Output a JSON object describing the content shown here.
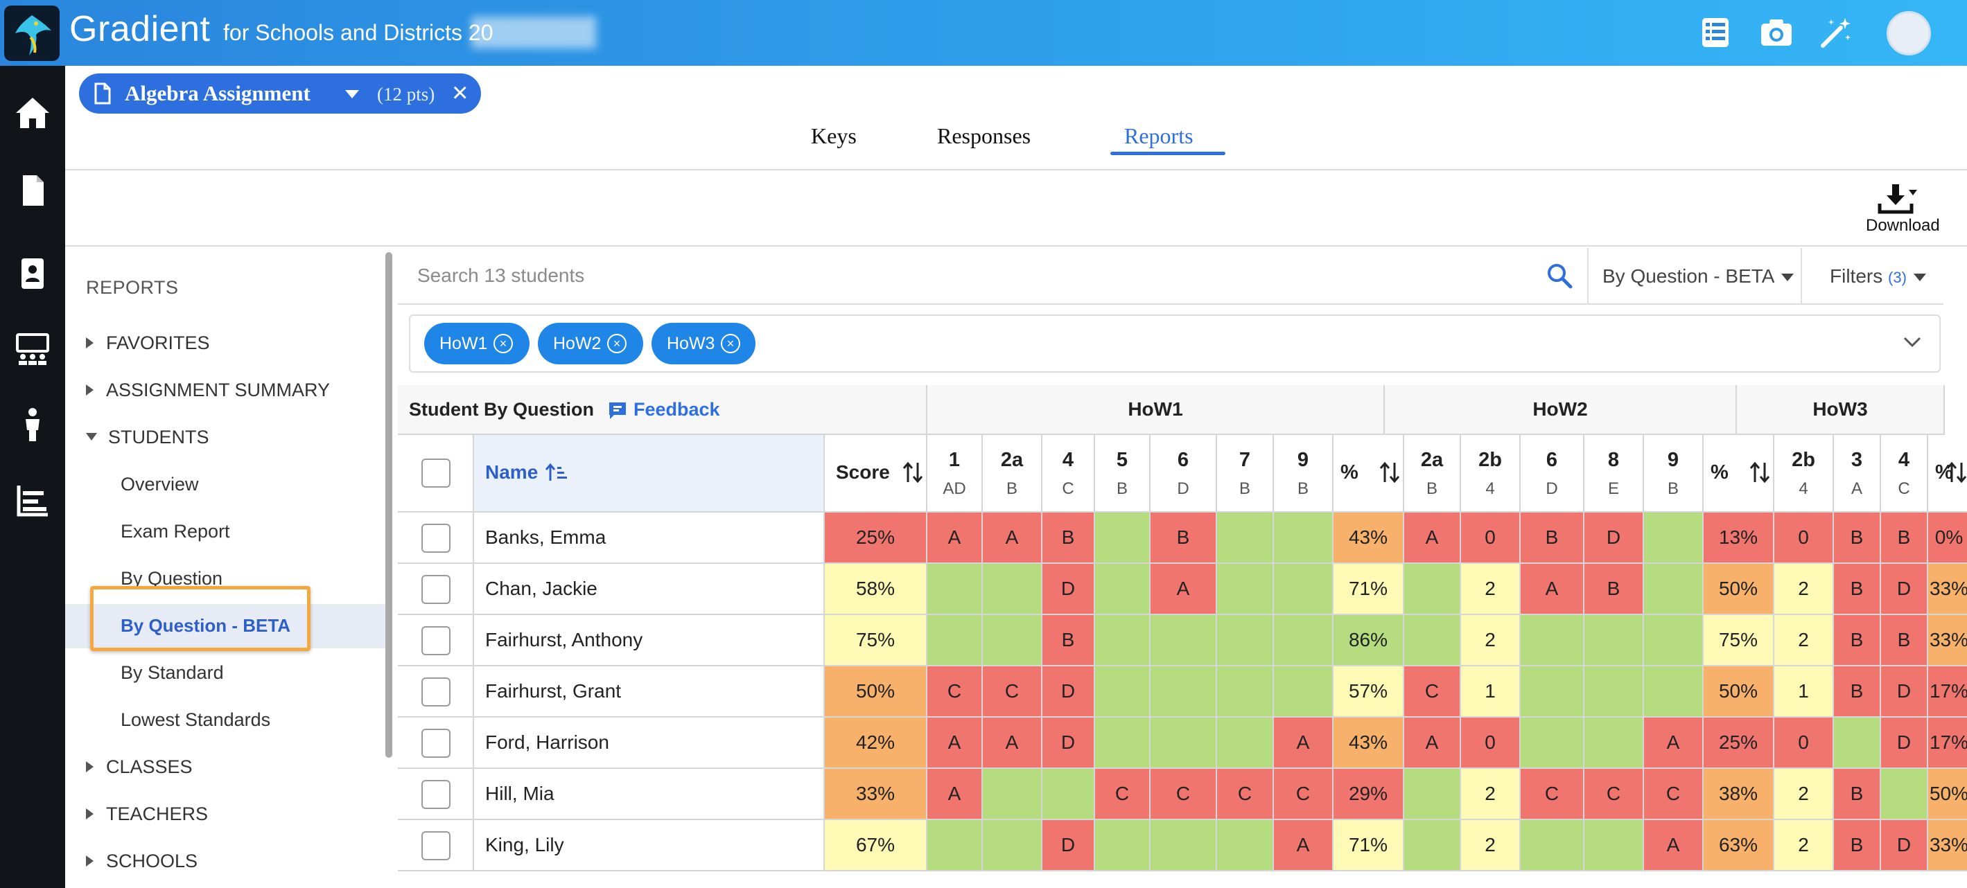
{
  "app": {
    "name": "Gradient",
    "subtitle": "for Schools and Districts 20",
    "colors": {
      "topbar": "#2a86dd",
      "rail": "#111418",
      "accent": "#2e6fe0",
      "pill": "#1f86e8",
      "highlight": "#f3a93f"
    }
  },
  "top_icons": [
    "spreadsheet-icon",
    "camera-icon",
    "magic-wand-icon",
    "avatar"
  ],
  "rail_icons": [
    "home-icon",
    "document-icon",
    "student-id-icon",
    "classroom-icon",
    "person-icon",
    "chart-icon"
  ],
  "assignment": {
    "title": "Algebra Assignment",
    "points": "(12 pts)"
  },
  "tabs": [
    {
      "label": "Keys",
      "active": false
    },
    {
      "label": "Responses",
      "active": false
    },
    {
      "label": "Reports",
      "active": true
    }
  ],
  "download_label": "Download",
  "reports_menu": {
    "heading": "REPORTS",
    "items": [
      {
        "label": "FAVORITES",
        "type": "collapsed"
      },
      {
        "label": "ASSIGNMENT SUMMARY",
        "type": "collapsed"
      },
      {
        "label": "STUDENTS",
        "type": "expanded"
      },
      {
        "label": "Overview",
        "type": "child"
      },
      {
        "label": "Exam Report",
        "type": "child"
      },
      {
        "label": "By Question",
        "type": "child"
      },
      {
        "label": "By Question - BETA",
        "type": "child-selected"
      },
      {
        "label": "By Standard",
        "type": "child"
      },
      {
        "label": "Lowest Standards",
        "type": "child"
      },
      {
        "label": "CLASSES",
        "type": "collapsed"
      },
      {
        "label": "TEACHERS",
        "type": "collapsed"
      },
      {
        "label": "SCHOOLS",
        "type": "collapsed"
      }
    ]
  },
  "toolbar": {
    "search_placeholder": "Search 13 students",
    "view_label": "By Question - BETA",
    "filters_label": "Filters",
    "filters_count": "(3)"
  },
  "filter_pills": [
    "HoW1",
    "HoW2",
    "HoW3"
  ],
  "table": {
    "title": "Student By Question",
    "feedback_label": "Feedback",
    "name_header": "Name",
    "score_header": "Score",
    "groups": [
      {
        "name": "HoW1",
        "questions": [
          {
            "q": "1",
            "k": "AD"
          },
          {
            "q": "2a",
            "k": "B"
          },
          {
            "q": "4",
            "k": "C"
          },
          {
            "q": "5",
            "k": "B"
          },
          {
            "q": "6",
            "k": "D"
          },
          {
            "q": "7",
            "k": "B"
          },
          {
            "q": "9",
            "k": "B"
          },
          {
            "q": "%",
            "k": ""
          }
        ]
      },
      {
        "name": "HoW2",
        "questions": [
          {
            "q": "2a",
            "k": "B"
          },
          {
            "q": "2b",
            "k": "4"
          },
          {
            "q": "6",
            "k": "D"
          },
          {
            "q": "8",
            "k": "E"
          },
          {
            "q": "9",
            "k": "B"
          },
          {
            "q": "%",
            "k": ""
          }
        ]
      },
      {
        "name": "HoW3",
        "questions": [
          {
            "q": "2b",
            "k": "4"
          },
          {
            "q": "3",
            "k": "A"
          },
          {
            "q": "4",
            "k": "C"
          },
          {
            "q": "%",
            "k": ""
          }
        ]
      }
    ],
    "rows": [
      {
        "name": "Banks, Emma",
        "score": "25%",
        "cells": [
          [
            "A",
            "r"
          ],
          [
            "A",
            "r"
          ],
          [
            "B",
            "r"
          ],
          [
            "",
            "g"
          ],
          [
            "B",
            "r"
          ],
          [
            "",
            "g"
          ],
          [
            "",
            "g"
          ],
          [
            "43%",
            "o"
          ],
          [
            "A",
            "r"
          ],
          [
            "0",
            "r"
          ],
          [
            "B",
            "r"
          ],
          [
            "D",
            "r"
          ],
          [
            "",
            "g"
          ],
          [
            "13%",
            "r"
          ],
          [
            "0",
            "r"
          ],
          [
            "B",
            "r"
          ],
          [
            "B",
            "r"
          ],
          [
            "0%",
            "r"
          ]
        ]
      },
      {
        "name": "Chan, Jackie",
        "score": "58%",
        "cells": [
          [
            "",
            "g"
          ],
          [
            "",
            "g"
          ],
          [
            "D",
            "r"
          ],
          [
            "",
            "g"
          ],
          [
            "A",
            "r"
          ],
          [
            "",
            "g"
          ],
          [
            "",
            "g"
          ],
          [
            "71%",
            "y"
          ],
          [
            "",
            "g"
          ],
          [
            "2",
            "y"
          ],
          [
            "A",
            "r"
          ],
          [
            "B",
            "r"
          ],
          [
            "",
            "g"
          ],
          [
            "50%",
            "o"
          ],
          [
            "2",
            "y"
          ],
          [
            "B",
            "r"
          ],
          [
            "D",
            "r"
          ],
          [
            "33%",
            "o"
          ]
        ]
      },
      {
        "name": "Fairhurst, Anthony",
        "score": "75%",
        "cells": [
          [
            "",
            "g"
          ],
          [
            "",
            "g"
          ],
          [
            "B",
            "r"
          ],
          [
            "",
            "g"
          ],
          [
            "",
            "g"
          ],
          [
            "",
            "g"
          ],
          [
            "",
            "g"
          ],
          [
            "86%",
            "g"
          ],
          [
            "",
            "g"
          ],
          [
            "2",
            "y"
          ],
          [
            "",
            "g"
          ],
          [
            "",
            "g"
          ],
          [
            "",
            "g"
          ],
          [
            "75%",
            "y"
          ],
          [
            "2",
            "y"
          ],
          [
            "B",
            "r"
          ],
          [
            "B",
            "r"
          ],
          [
            "33%",
            "o"
          ]
        ]
      },
      {
        "name": "Fairhurst, Grant",
        "score": "50%",
        "cells": [
          [
            "C",
            "r"
          ],
          [
            "C",
            "r"
          ],
          [
            "D",
            "r"
          ],
          [
            "",
            "g"
          ],
          [
            "",
            "g"
          ],
          [
            "",
            "g"
          ],
          [
            "",
            "g"
          ],
          [
            "57%",
            "y"
          ],
          [
            "C",
            "r"
          ],
          [
            "1",
            "y"
          ],
          [
            "",
            "g"
          ],
          [
            "",
            "g"
          ],
          [
            "",
            "g"
          ],
          [
            "50%",
            "o"
          ],
          [
            "1",
            "y"
          ],
          [
            "B",
            "r"
          ],
          [
            "D",
            "r"
          ],
          [
            "17%",
            "r"
          ]
        ]
      },
      {
        "name": "Ford, Harrison",
        "score": "42%",
        "cells": [
          [
            "A",
            "r"
          ],
          [
            "A",
            "r"
          ],
          [
            "D",
            "r"
          ],
          [
            "",
            "g"
          ],
          [
            "",
            "g"
          ],
          [
            "",
            "g"
          ],
          [
            "A",
            "r"
          ],
          [
            "43%",
            "o"
          ],
          [
            "A",
            "r"
          ],
          [
            "0",
            "r"
          ],
          [
            "",
            "g"
          ],
          [
            "",
            "g"
          ],
          [
            "A",
            "r"
          ],
          [
            "25%",
            "r"
          ],
          [
            "0",
            "r"
          ],
          [
            "",
            "g"
          ],
          [
            "D",
            "r"
          ],
          [
            "17%",
            "r"
          ]
        ]
      },
      {
        "name": "Hill, Mia",
        "score": "33%",
        "cells": [
          [
            "A",
            "r"
          ],
          [
            "",
            "g"
          ],
          [
            "",
            "g"
          ],
          [
            "C",
            "r"
          ],
          [
            "C",
            "r"
          ],
          [
            "C",
            "r"
          ],
          [
            "C",
            "r"
          ],
          [
            "29%",
            "r"
          ],
          [
            "",
            "g"
          ],
          [
            "2",
            "y"
          ],
          [
            "C",
            "r"
          ],
          [
            "C",
            "r"
          ],
          [
            "C",
            "r"
          ],
          [
            "38%",
            "o"
          ],
          [
            "2",
            "y"
          ],
          [
            "B",
            "r"
          ],
          [
            "",
            "g"
          ],
          [
            "50%",
            "o"
          ]
        ]
      },
      {
        "name": "King, Lily",
        "score": "67%",
        "cells": [
          [
            "",
            "g"
          ],
          [
            "",
            "g"
          ],
          [
            "D",
            "r"
          ],
          [
            "",
            "g"
          ],
          [
            "",
            "g"
          ],
          [
            "",
            "g"
          ],
          [
            "A",
            "r"
          ],
          [
            "71%",
            "y"
          ],
          [
            "",
            "g"
          ],
          [
            "2",
            "y"
          ],
          [
            "",
            "g"
          ],
          [
            "",
            "g"
          ],
          [
            "A",
            "r"
          ],
          [
            "63%",
            "o"
          ],
          [
            "2",
            "y"
          ],
          [
            "B",
            "r"
          ],
          [
            "D",
            "r"
          ],
          [
            "33%",
            "o"
          ]
        ]
      }
    ]
  }
}
